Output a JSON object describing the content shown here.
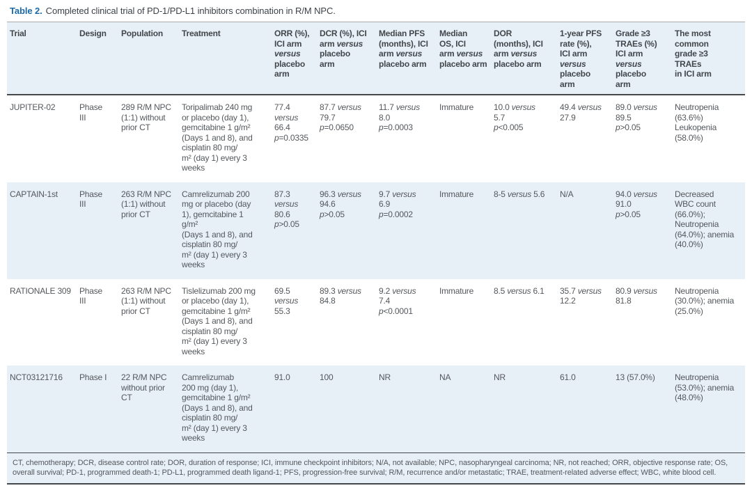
{
  "title": {
    "label": "Table 2.",
    "caption": "Completed clinical trial of PD-1/PD-L1 inhibitors combination in R/M NPC."
  },
  "colors": {
    "accent_blue": "#1c6aa8",
    "row_alt_blue": "#e7f0f7",
    "body_text": "#54585c",
    "header_text": "#42474b",
    "rule_dark": "#44484b",
    "rule_light": "#a7abae"
  },
  "table": {
    "columns": [
      {
        "key": "trial",
        "label": "Trial"
      },
      {
        "key": "design",
        "label": "Design"
      },
      {
        "key": "population",
        "label": "Population"
      },
      {
        "key": "treatment",
        "label": "Treatment"
      },
      {
        "key": "orr",
        "label": "ORR (%),\nICI arm\n*versus*\nplacebo\narm"
      },
      {
        "key": "dcr",
        "label": "DCR (%), ICI\narm *versus*\nplacebo\narm"
      },
      {
        "key": "pfs",
        "label": "Median PFS\n(months), ICI\narm *versus*\nplacebo arm"
      },
      {
        "key": "os",
        "label": "Median\nOS, ICI\narm *versus*\nplacebo arm"
      },
      {
        "key": "dor",
        "label": "DOR\n(months), ICI\narm *versus*\nplacebo arm"
      },
      {
        "key": "pfs1yr",
        "label": "1-year PFS\nrate (%),\nICI arm\n*versus*\nplacebo\narm"
      },
      {
        "key": "grade3",
        "label": "Grade ≥3\nTRAEs (%)\nICI arm\n*versus*\nplacebo\narm"
      },
      {
        "key": "common",
        "label": "The most\ncommon\ngrade ≥3\nTRAEs\nin ICI arm"
      }
    ],
    "rows": [
      {
        "trial": "JUPITER-02",
        "design": "Phase\nIII",
        "population": "289 R/M NPC\n(1:1) without\nprior CT",
        "treatment": "Toripalimab 240 mg\nor placebo (day 1),\ngemcitabine 1 g/m²\n(Days 1 and 8), and\ncisplatin 80 mg/\nm² (day 1) every 3\nweeks",
        "orr": "77.4\n*versus*\n66.4\n*p*=0.0335",
        "dcr": "87.7 *versus*\n79.7\n*p*=0.0650",
        "pfs": "11.7 *versus*\n8.0\n*p*=0.0003",
        "os": "Immature",
        "dor": "10.0 *versus*\n5.7\n*p*<0.005",
        "pfs1yr": "49.4 *versus*\n27.9",
        "grade3": "89.0 *versus*\n89.5\n*p*>0.05",
        "common": "Neutropenia\n(63.6%)\nLeukopenia\n(58.0%)"
      },
      {
        "trial": "CAPTAIN-1st",
        "design": "Phase\nIII",
        "population": "263 R/M NPC\n(1:1) without\nprior CT",
        "treatment": "Camrelizumab 200\nmg or placebo (day\n1), gemcitabine 1\ng/m²\n(Days 1 and 8), and\ncisplatin 80 mg/\nm² (day 1) every 3\nweeks",
        "orr": "87.3\n*versus*\n80.6\n*p*>0.05",
        "dcr": "96.3 *versus*\n94.6\n*p*>0.05",
        "pfs": "9.7 *versus*\n6.9\n*p*=0.0002",
        "os": "Immature",
        "dor": "8-5 *versus* 5.6",
        "pfs1yr": "N/A",
        "grade3": "94.0 *versus*\n91.0\n*p*>0.05",
        "common": "Decreased\nWBC count\n(66.0%);\nNeutropenia\n(64.0%); anemia\n(40.0%)"
      },
      {
        "trial": "RATIONALE 309",
        "design": "Phase\nIII",
        "population": "263 R/M NPC\n(1:1) without\nprior CT",
        "treatment": "Tislelizumab 200 mg\nor placebo (day 1),\ngemcitabine 1 g/m²\n(Days 1 and 8), and\ncisplatin 80 mg/\nm² (day 1) every 3\nweeks",
        "orr": "69.5\n*versus*\n55.3",
        "dcr": "89.3 *versus*\n84.8",
        "pfs": "9.2 *versus*\n7.4\n*p*<0.0001",
        "os": "Immature",
        "dor": "8.5 *versus* 6.1",
        "pfs1yr": "35.7 *versus*\n12.2",
        "grade3": "80.9 *versus*\n81.8",
        "common": "Neutropenia\n(30.0%); anemia\n(25.0%)"
      },
      {
        "trial": "NCT03121716",
        "design": "Phase I",
        "population": "22 R/M NPC\nwithout prior\nCT",
        "treatment": "Camrelizumab\n200 mg (day 1),\ngemcitabine 1 g/m²\n(Days 1 and 8), and\ncisplatin 80 mg/\nm² (day 1) every 3\nweeks",
        "orr": "91.0",
        "dcr": "100",
        "pfs": "NR",
        "os": "NA",
        "dor": "NR",
        "pfs1yr": "61.0",
        "grade3": "13 (57.0%)",
        "common": "Neutropenia\n(53.0%); anemia\n(48.0%)"
      }
    ]
  },
  "footnote": "CT, chemotherapy; DCR, disease control rate; DOR, duration of response; ICI, immune checkpoint inhibitors; N/A, not available; NPC, nasopharyngeal carcinoma; NR, not reached; ORR, objective response rate; OS, overall survival; PD-1, programmed death-1; PD-L1, programmed death ligand-1; PFS, progression-free survival; R/M, recurrence and/or metastatic; TRAE, treatment-related adverse effect; WBC, white blood cell."
}
